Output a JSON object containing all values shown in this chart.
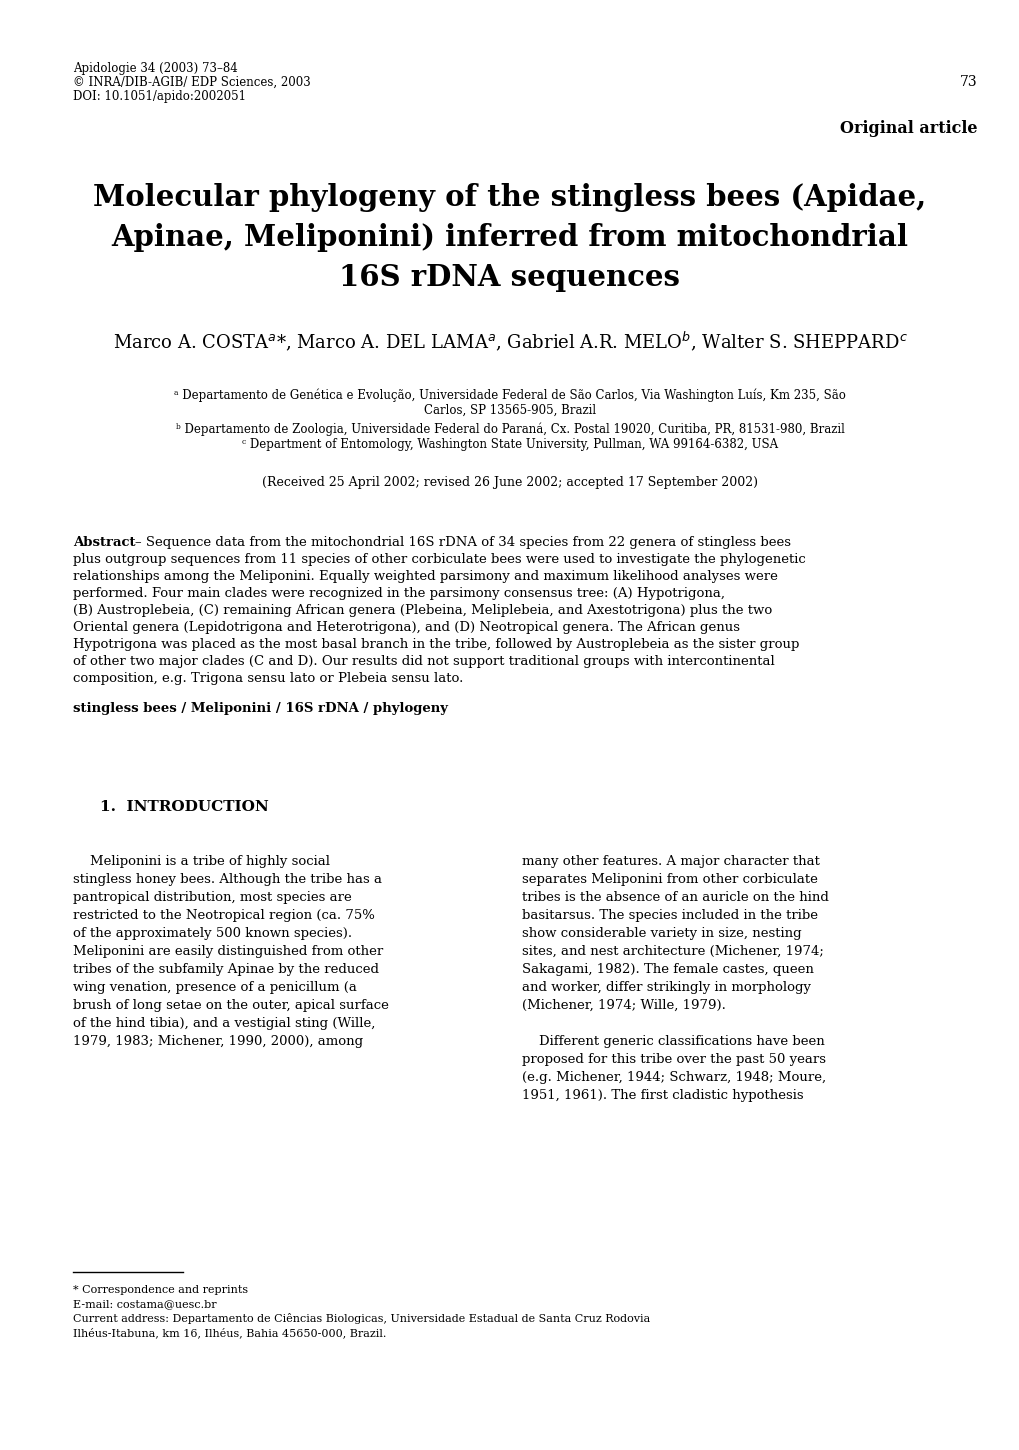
{
  "header_left_1": "Apidologie 34 (2003) 73–84",
  "header_left_2": "© INRA/DIB-AGIB/ EDP Sciences, 2003",
  "header_left_3": "DOI: 10.1051/apido:2002051",
  "header_page": "73",
  "original_article": "Original article",
  "title_line1": "Molecular phylogeny of the stingless bees (Apidae,",
  "title_line2": "Apinae, Meliponini) inferred from mitochondrial",
  "title_line3": "16S rDNA sequences",
  "affil_a1": "ᵃ Departamento de Genética e Evolução, Universidade Federal de São Carlos, Via Washington Luís, Km 235, São",
  "affil_a2": "Carlos, SP 13565-905, Brazil",
  "affil_b": "ᵇ Departamento de Zoologia, Universidade Federal do Paraná, Cx. Postal 19020, Curitiba, PR, 81531-980, Brazil",
  "affil_c": "ᶜ Department of Entomology, Washington State University, Pullman, WA 99164-6382, USA",
  "received": "(Received 25 April 2002; revised 26 June 2002; accepted 17 September 2002)",
  "abstract_text_1": "– Sequence data from the mitochondrial 16S rDNA of 34 species from 22 genera of stingless bees",
  "abstract_text_2": "plus outgroup sequences from 11 species of other corbiculate bees were used to investigate the phylogenetic",
  "abstract_text_3": "relationships among the Meliponini. Equally weighted parsimony and maximum likelihood analyses were",
  "abstract_text_4": "performed. Four main clades were recognized in the parsimony consensus tree: (A) Hypotrigona,",
  "abstract_text_5": "(B) Austroplebeia, (C) remaining African genera (Plebeina, Meliplebeia, and Axestotrigona) plus the two",
  "abstract_text_6": "Oriental genera (Lepidotrigona and Heterotrigona), and (D) Neotropical genera. The African genus",
  "abstract_text_7": "Hypotrigona was placed as the most basal branch in the tribe, followed by Austroplebeia as the sister group",
  "abstract_text_8": "of other two major clades (C and D). Our results did not support traditional groups with intercontinental",
  "abstract_text_9": "composition, e.g. Trigona sensu lato or Plebeia sensu lato.",
  "keywords": "stingless bees / Meliponini / 16S rDNA / phylogeny",
  "section_title": "1.  INTRODUCTION",
  "col1_lines": [
    "    Meliponini is a tribe of highly social",
    "stingless honey bees. Although the tribe has a",
    "pantropical distribution, most species are",
    "restricted to the Neotropical region (ca. 75%",
    "of the approximately 500 known species).",
    "Meliponini are easily distinguished from other",
    "tribes of the subfamily Apinae by the reduced",
    "wing venation, presence of a penicillum (a",
    "brush of long setae on the outer, apical surface",
    "of the hind tibia), and a vestigial sting (Wille,",
    "1979, 1983; Michener, 1990, 2000), among"
  ],
  "col2_lines": [
    "many other features. A major character that",
    "separates Meliponini from other corbiculate",
    "tribes is the absence of an auricle on the hind",
    "basitarsus. The species included in the tribe",
    "show considerable variety in size, nesting",
    "sites, and nest architecture (Michener, 1974;",
    "Sakagami, 1982). The female castes, queen",
    "and worker, differ strikingly in morphology",
    "(Michener, 1974; Wille, 1979).",
    "",
    "    Different generic classifications have been",
    "proposed for this tribe over the past 50 years",
    "(e.g. Michener, 1944; Schwarz, 1948; Moure,",
    "1951, 1961). The first cladistic hypothesis"
  ],
  "fn_star": "* Correspondence and reprints",
  "fn_email": "E-mail: costama@uesc.br",
  "fn_current1": "Current address: Departamento de Ciências Biologicas, Universidade Estadual de Santa Cruz Rodovia",
  "fn_current2": "Ilhéus-Itabuna, km 16, Ilhéus, Bahia 45650-000, Brazil.",
  "bg_color": "#ffffff",
  "text_color": "#000000"
}
